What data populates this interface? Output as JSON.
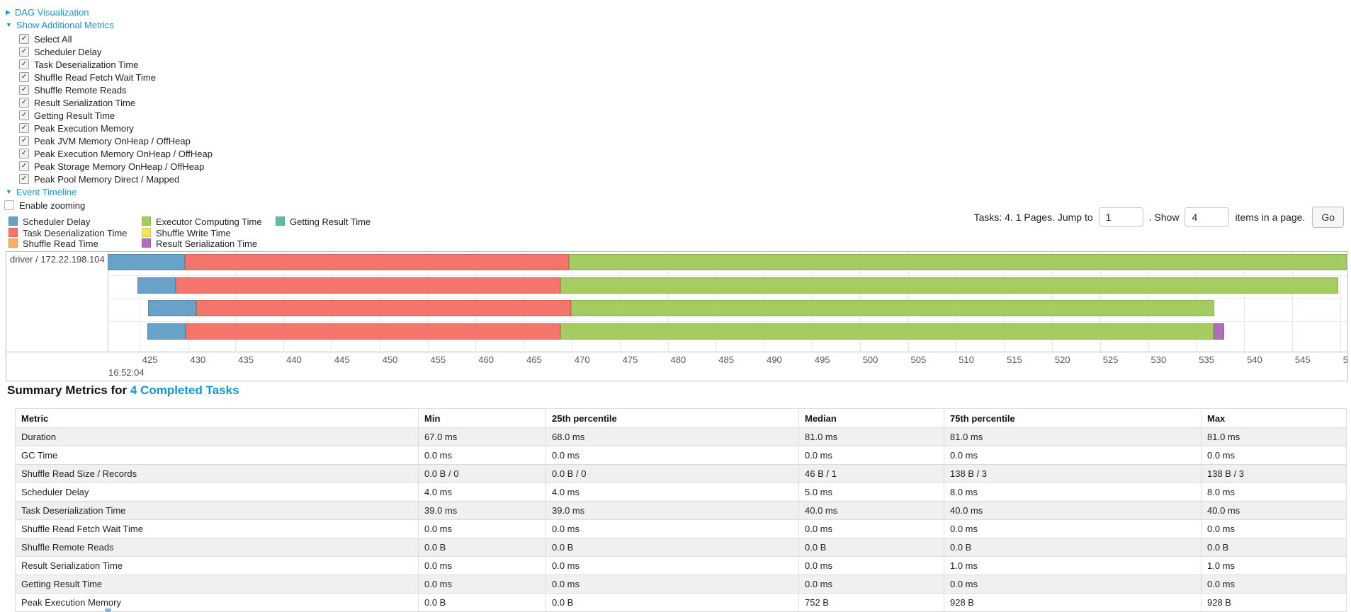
{
  "link_color": "#0f98d5",
  "controls": {
    "dag_section": {
      "label": "DAG Visualization",
      "state": "collapsed"
    },
    "metrics_section": {
      "label": "Show Additional Metrics",
      "state": "expanded"
    },
    "metric_checkboxes": [
      {
        "label": "Select All",
        "checked": true
      },
      {
        "label": "Scheduler Delay",
        "checked": true
      },
      {
        "label": "Task Deserialization Time",
        "checked": true
      },
      {
        "label": "Shuffle Read Fetch Wait Time",
        "checked": true
      },
      {
        "label": "Shuffle Remote Reads",
        "checked": true
      },
      {
        "label": "Result Serialization Time",
        "checked": true
      },
      {
        "label": "Getting Result Time",
        "checked": true
      },
      {
        "label": "Peak Execution Memory",
        "checked": true
      },
      {
        "label": "Peak JVM Memory OnHeap / OffHeap",
        "checked": true
      },
      {
        "label": "Peak Execution Memory OnHeap / OffHeap",
        "checked": true
      },
      {
        "label": "Peak Storage Memory OnHeap / OffHeap",
        "checked": true
      },
      {
        "label": "Peak Pool Memory Direct / Mapped",
        "checked": true
      }
    ],
    "timeline_section": {
      "label": "Event Timeline",
      "state": "expanded"
    },
    "enable_zooming": {
      "label": "Enable zooming",
      "checked": false
    }
  },
  "pagination": {
    "prefix": "Tasks: 4. 1 Pages. Jump to",
    "jump_value": "1",
    "mid": ". Show",
    "show_value": "4",
    "suffix": "items in a page.",
    "go_label": "Go"
  },
  "legend": {
    "items": [
      {
        "label": "Scheduler Delay",
        "color": "#68A2C9",
        "col": 0,
        "row": 0
      },
      {
        "label": "Task Deserialization Time",
        "color": "#F4756C",
        "col": 0,
        "row": 1
      },
      {
        "label": "Shuffle Read Time",
        "color": "#FBAE5B",
        "col": 0,
        "row": 2
      },
      {
        "label": "Executor Computing Time",
        "color": "#A5CC61",
        "col": 1,
        "row": 0
      },
      {
        "label": "Shuffle Write Time",
        "color": "#F3E55C",
        "col": 1,
        "row": 1
      },
      {
        "label": "Result Serialization Time",
        "color": "#AF6EB8",
        "col": 1,
        "row": 2
      },
      {
        "label": "Getting Result Time",
        "color": "#5BBFA5",
        "col": 2,
        "row": 0
      }
    ]
  },
  "chart_data": {
    "type": "timeline",
    "title": "Event Timeline",
    "group_label": "driver / 172.22.198.104",
    "base_time_label": "16:52:04",
    "axis": {
      "tick_start": 425,
      "tick_end": 550,
      "tick_step": 5,
      "unit": "ms of 16:52:04"
    },
    "series_colors": {
      "Scheduler Delay": "#68A2C9",
      "Task Deserialization Time": "#F4756C",
      "Shuffle Read Time": "#FBAE5B",
      "Executor Computing Time": "#A5CC61",
      "Shuffle Write Time": "#F3E55C",
      "Result Serialization Time": "#AF6EB8",
      "Getting Result Time": "#5BBFA5"
    },
    "tasks": [
      {
        "start_ms": 421.7,
        "segments": [
          [
            "Scheduler Delay",
            8
          ],
          [
            "Task Deserialization Time",
            40
          ],
          [
            "Executor Computing Time",
            81
          ]
        ]
      },
      {
        "start_ms": 424.8,
        "segments": [
          [
            "Scheduler Delay",
            4
          ],
          [
            "Task Deserialization Time",
            40
          ],
          [
            "Executor Computing Time",
            81
          ]
        ]
      },
      {
        "start_ms": 425.9,
        "segments": [
          [
            "Scheduler Delay",
            5
          ],
          [
            "Task Deserialization Time",
            39
          ],
          [
            "Executor Computing Time",
            67
          ]
        ]
      },
      {
        "start_ms": 425.8,
        "segments": [
          [
            "Scheduler Delay",
            4
          ],
          [
            "Task Deserialization Time",
            39
          ],
          [
            "Executor Computing Time",
            68
          ],
          [
            "Result Serialization Time",
            1.1
          ]
        ]
      }
    ]
  },
  "summary": {
    "title_prefix": "Summary Metrics for",
    "title_link": "4 Completed Tasks",
    "columns": [
      "Metric",
      "Min",
      "25th percentile",
      "Median",
      "75th percentile",
      "Max"
    ],
    "rows": [
      [
        "Duration",
        "67.0 ms",
        "68.0 ms",
        "81.0 ms",
        "81.0 ms",
        "81.0 ms"
      ],
      [
        "GC Time",
        "0.0 ms",
        "0.0 ms",
        "0.0 ms",
        "0.0 ms",
        "0.0 ms"
      ],
      [
        "Shuffle Read Size / Records",
        "0.0 B / 0",
        "0.0 B / 0",
        "46 B / 1",
        "138 B / 3",
        "138 B / 3"
      ],
      [
        "Scheduler Delay",
        "4.0 ms",
        "4.0 ms",
        "5.0 ms",
        "8.0 ms",
        "8.0 ms"
      ],
      [
        "Task Deserialization Time",
        "39.0 ms",
        "39.0 ms",
        "40.0 ms",
        "40.0 ms",
        "40.0 ms"
      ],
      [
        "Shuffle Read Fetch Wait Time",
        "0.0 ms",
        "0.0 ms",
        "0.0 ms",
        "0.0 ms",
        "0.0 ms"
      ],
      [
        "Shuffle Remote Reads",
        "0.0 B",
        "0.0 B",
        "0.0 B",
        "0.0 B",
        "0.0 B"
      ],
      [
        "Result Serialization Time",
        "0.0 ms",
        "0.0 ms",
        "0.0 ms",
        "1.0 ms",
        "1.0 ms"
      ],
      [
        "Getting Result Time",
        "0.0 ms",
        "0.0 ms",
        "0.0 ms",
        "0.0 ms",
        "0.0 ms"
      ],
      [
        "Peak Execution Memory",
        "0.0 B",
        "0.0 B",
        "752 B",
        "928 B",
        "928 B"
      ]
    ]
  }
}
